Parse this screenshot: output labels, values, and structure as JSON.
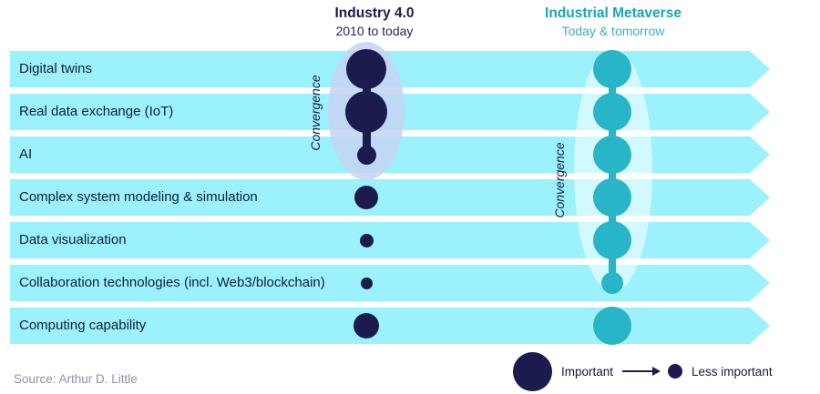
{
  "header": {
    "col1": {
      "title": "Industry 4.0",
      "subtitle": "2010 to today"
    },
    "col2": {
      "title": "Industrial Metaverse",
      "subtitle": "Today & tomorrow"
    }
  },
  "rows": [
    {
      "label": "Digital twins",
      "industry_dot": 44,
      "metaverse_dot": 42
    },
    {
      "label": "Real data exchange (IoT)",
      "industry_dot": 46,
      "metaverse_dot": 42
    },
    {
      "label": "AI",
      "industry_dot": 21,
      "metaverse_dot": 42
    },
    {
      "label": "Complex system modeling & simulation",
      "industry_dot": 26,
      "metaverse_dot": 42
    },
    {
      "label": "Data visualization",
      "industry_dot": 15,
      "metaverse_dot": 42
    },
    {
      "label": "Collaboration technologies (incl. Web3/blockchain)",
      "industry_dot": 13,
      "metaverse_dot": 24
    },
    {
      "label": "Computing capability",
      "industry_dot": 28,
      "metaverse_dot": 42
    }
  ],
  "convergence": {
    "label": "Convergence",
    "industry_connected_rows": [
      0,
      2
    ],
    "metaverse_connected_rows": [
      0,
      5
    ]
  },
  "legend": {
    "important": "Important",
    "less_important": "Less important"
  },
  "source": "Source: Arthur D. Little",
  "colors": {
    "navy": "#1b1b4e",
    "teal": "#28b5c8",
    "band": "#9bf1fc",
    "teal_title": "#1ba3b6",
    "teal_subtitle": "#3aafc3",
    "halo_industry": "rgba(198,212,242,0.85)",
    "halo_metaverse": "rgba(255,255,255,0.55)",
    "text_gray": "#8d93a8",
    "label_navy": "#101c45"
  }
}
